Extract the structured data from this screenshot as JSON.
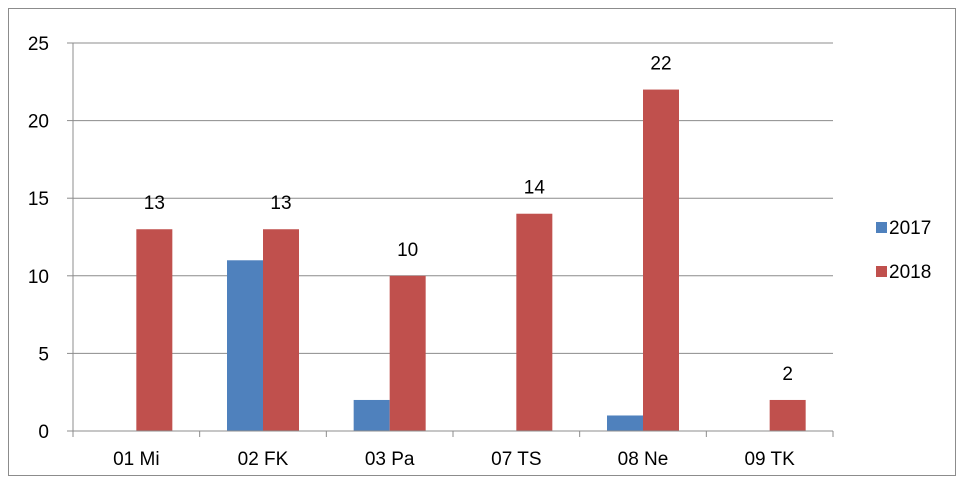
{
  "chart_data": {
    "type": "bar",
    "title": "",
    "xlabel": "",
    "ylabel": "",
    "categories": [
      "01 Mi",
      "02 FK",
      "03 Pa",
      "07 TS",
      "08 Ne",
      "09 TK"
    ],
    "series": [
      {
        "name": "2017",
        "color": "#4f81bd",
        "values": [
          0,
          11,
          2,
          0,
          1,
          0
        ],
        "show_labels": false
      },
      {
        "name": "2018",
        "color": "#c0504d",
        "values": [
          13,
          13,
          10,
          14,
          22,
          2
        ],
        "show_labels": true
      }
    ],
    "ylim": [
      0,
      25
    ],
    "yticks": [
      0,
      5,
      10,
      15,
      20,
      25
    ],
    "grid": true,
    "legend_position": "right"
  }
}
